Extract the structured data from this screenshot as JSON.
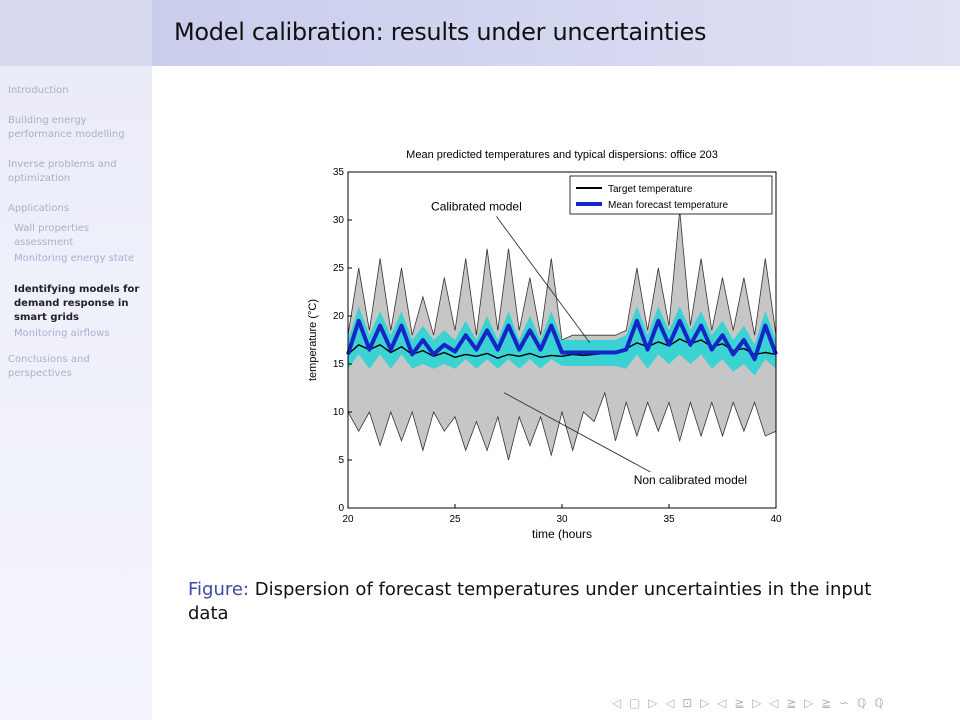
{
  "slide": {
    "title": "Model calibration: results under uncertainties"
  },
  "sidebar": {
    "items": [
      {
        "label": "Introduction"
      },
      {
        "label": "Building energy performance modelling"
      },
      {
        "label": "Inverse problems and optimization"
      },
      {
        "label": "Applications"
      },
      {
        "label": "Wall properties assessment"
      },
      {
        "label": "Monitoring energy state"
      },
      {
        "label": "Identifying models for demand response in smart grids"
      },
      {
        "label": "Monitoring airflows"
      },
      {
        "label": "Conclusions and perspectives"
      }
    ]
  },
  "caption": {
    "label": "Figure:",
    "text": "Dispersion of forecast temperatures under uncertainties in the input data"
  },
  "nav_symbols": "◁ ▢ ▷  ◁ ⊡ ▷  ◁ ≧ ▷  ◁ ≧ ▷   ≧   ∽ ℚ ℚ",
  "chart_data": {
    "type": "line",
    "title": "Mean predicted temperatures and typical dispersions: office 203",
    "xlabel": "time (hours",
    "ylabel": "temperature (°C)",
    "xlim": [
      20,
      40
    ],
    "ylim": [
      0,
      35
    ],
    "xticks": [
      20,
      25,
      30,
      35,
      40
    ],
    "yticks": [
      0,
      5,
      10,
      15,
      20,
      25,
      30,
      35
    ],
    "legend_position": "top-right",
    "series": [
      {
        "name": "Target temperature",
        "color": "#000000",
        "x": [
          20,
          20.5,
          21,
          21.5,
          22,
          22.5,
          23,
          23.5,
          24,
          24.5,
          25,
          25.5,
          26,
          26.5,
          27,
          27.5,
          28,
          28.5,
          29,
          29.5,
          30,
          30.5,
          31,
          31.5,
          32,
          32.5,
          33,
          33.5,
          34,
          34.5,
          35,
          35.5,
          36,
          36.5,
          37,
          37.5,
          38,
          38.5,
          39,
          39.5,
          40
        ],
        "values": [
          16,
          17,
          16.5,
          17,
          16.2,
          16.8,
          16,
          16.4,
          15.8,
          16.2,
          15.7,
          16,
          15.8,
          16.1,
          15.6,
          16,
          15.8,
          16.1,
          15.7,
          15.9,
          15.8,
          16,
          15.9,
          16,
          16.1,
          16.3,
          16.6,
          17.2,
          16.8,
          17.3,
          16.9,
          17.6,
          17.1,
          17.5,
          16.8,
          17.1,
          16.4,
          16.6,
          16,
          16.2,
          16
        ]
      },
      {
        "name": "Mean forecast temperature",
        "color": "#1426c8",
        "x": [
          20,
          20.5,
          21,
          21.5,
          22,
          22.5,
          23,
          23.5,
          24,
          24.5,
          25,
          25.5,
          26,
          26.5,
          27,
          27.5,
          28,
          28.5,
          29,
          29.5,
          30,
          30.5,
          31,
          31.5,
          32,
          32.5,
          33,
          33.5,
          34,
          34.5,
          35,
          35.5,
          36,
          36.5,
          37,
          37.5,
          38,
          38.5,
          39,
          39.5,
          40
        ],
        "values": [
          16,
          19.5,
          16.5,
          19,
          16.5,
          19,
          16,
          17.5,
          16,
          17,
          16.3,
          18,
          16.5,
          18.5,
          16.5,
          19,
          16.5,
          18.5,
          16.5,
          19,
          16.2,
          16.2,
          16.2,
          16.2,
          16.2,
          16.2,
          16.5,
          19.5,
          16.5,
          19.5,
          17,
          19.5,
          17,
          19,
          16.5,
          18,
          16,
          17.5,
          15.5,
          19,
          16
        ]
      }
    ],
    "bands": [
      {
        "name": "Non calibrated model",
        "color": "#c3c3c3",
        "x": [
          20,
          20.5,
          21,
          21.5,
          22,
          22.5,
          23,
          23.5,
          24,
          24.5,
          25,
          25.5,
          26,
          26.5,
          27,
          27.5,
          28,
          28.5,
          29,
          29.5,
          30,
          30.5,
          31,
          31.5,
          32,
          32.5,
          33,
          33.5,
          34,
          34.5,
          35,
          35.5,
          36,
          36.5,
          37,
          37.5,
          38,
          38.5,
          39,
          39.5,
          40
        ],
        "upper": [
          18,
          25,
          18.5,
          26,
          18.5,
          25,
          18,
          22,
          18,
          24,
          18.5,
          26,
          18,
          27,
          18.5,
          27,
          18.5,
          24,
          18,
          26,
          17.5,
          18,
          18,
          18,
          18,
          18,
          18.5,
          25,
          18.5,
          25,
          19,
          31,
          19,
          26,
          18.5,
          24,
          18.5,
          24,
          18,
          26,
          18
        ],
        "lower": [
          10,
          8,
          10,
          6.5,
          10,
          7,
          10,
          6,
          10,
          8,
          9.5,
          6,
          9,
          6,
          9.5,
          5,
          9.5,
          6.5,
          9.5,
          5.5,
          10,
          6,
          10,
          9,
          12,
          7,
          11,
          7.5,
          11,
          8,
          11,
          7,
          11,
          7.5,
          11,
          7.5,
          11,
          8,
          11,
          7.5,
          8
        ]
      },
      {
        "name": "Calibrated model",
        "color": "#33d3d3",
        "x": [
          20,
          20.5,
          21,
          21.5,
          22,
          22.5,
          23,
          23.5,
          24,
          24.5,
          25,
          25.5,
          26,
          26.5,
          27,
          27.5,
          28,
          28.5,
          29,
          29.5,
          30,
          30.5,
          31,
          31.5,
          32,
          32.5,
          33,
          33.5,
          34,
          34.5,
          35,
          35.5,
          36,
          36.5,
          37,
          37.5,
          38,
          38.5,
          39,
          39.5,
          40
        ],
        "upper": [
          17.5,
          21,
          18,
          20.5,
          18,
          20.5,
          17.5,
          19,
          17.5,
          18.5,
          17.5,
          19.5,
          17.5,
          20,
          17.5,
          20.5,
          17.5,
          20,
          17.5,
          20.5,
          17.5,
          17.5,
          17.5,
          17.5,
          17.5,
          17.5,
          18,
          21,
          18,
          21,
          18.5,
          21,
          18.5,
          20.5,
          18,
          19.5,
          17.5,
          19,
          17,
          20.5,
          17.5
        ],
        "lower": [
          14.5,
          16,
          14.5,
          16,
          14.5,
          16,
          14.5,
          15,
          14.5,
          15,
          14.5,
          15.5,
          14.5,
          15.5,
          14.5,
          15.5,
          14.5,
          15.5,
          14.5,
          15.5,
          14.8,
          14.8,
          14.8,
          14.8,
          14.8,
          14.8,
          14.5,
          16,
          14.5,
          16,
          15,
          16,
          15,
          16,
          14.5,
          15.5,
          14.2,
          15,
          13.8,
          15.5,
          14.5
        ]
      }
    ],
    "annotations": [
      {
        "text": "Calibrated model",
        "x": 26,
        "y": 31
      },
      {
        "text": "Non calibrated model",
        "x": 36,
        "y": 2.5
      }
    ]
  }
}
